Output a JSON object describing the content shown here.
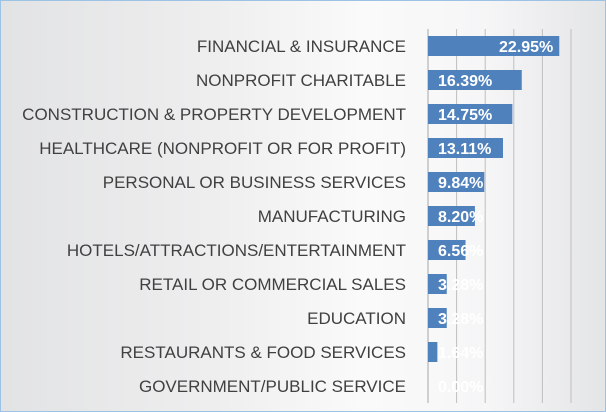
{
  "chart_data": {
    "type": "bar",
    "orientation": "horizontal",
    "categories": [
      "FINANCIAL & INSURANCE",
      "NONPROFIT CHARITABLE",
      "CONSTRUCTION & PROPERTY DEVELOPMENT",
      "HEALTHCARE (NONPROFIT OR FOR PROFIT)",
      "PERSONAL OR BUSINESS SERVICES",
      "MANUFACTURING",
      "HOTELS/ATTRACTIONS/ENTERTAINMENT",
      "RETAIL OR COMMERCIAL SALES",
      "EDUCATION",
      "RESTAURANTS & FOOD SERVICES",
      "GOVERNMENT/PUBLIC SERVICE"
    ],
    "values": [
      22.95,
      16.39,
      14.75,
      13.11,
      9.84,
      8.2,
      6.56,
      3.28,
      3.28,
      1.64,
      0.0
    ],
    "data_labels": [
      "22.95%",
      "16.39%",
      "14.75%",
      "13.11%",
      "9.84%",
      "8.20%",
      "6.56%",
      "3.28%",
      "3.28%",
      "1.64%",
      "0.00%"
    ],
    "title": "",
    "xlabel": "",
    "ylabel": "",
    "xlim": [
      0,
      25
    ],
    "gridlines": [
      0,
      5,
      10,
      15,
      20,
      25
    ],
    "grid": true,
    "legend": "none",
    "bar_color": "#4f81bd",
    "label_color": "#ffffff",
    "category_color": "#404040"
  }
}
